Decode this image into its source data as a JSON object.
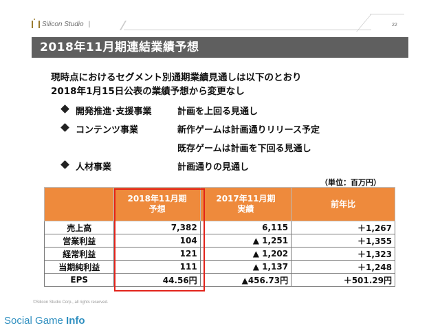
{
  "header": {
    "logo_text": "Silicon Studio",
    "separator": "|",
    "page_number": "22"
  },
  "title": "2018年11月期連結業績予想",
  "intro": {
    "line1": "現時点におけるセグメント別通期業績見通しは以下のとおり",
    "line2": "2018年1月15日公表の業績予想から変更なし"
  },
  "bullets": [
    {
      "name": "開発推進･支援事業",
      "desc": "計画を上回る見通し"
    },
    {
      "name": "コンテンツ事業",
      "desc": "新作ゲームは計画通りリリース予定"
    },
    {
      "name": "",
      "desc": "既存ゲームは計画を下回る見通し"
    },
    {
      "name": "人材事業",
      "desc": "計画通りの見通し"
    }
  ],
  "unit": "（単位：百万円）",
  "table": {
    "headers": [
      {
        "line1": "2018年11月期",
        "line2": "予想"
      },
      {
        "line1": "2017年11月期",
        "line2": "実績"
      },
      {
        "line1": "前年比",
        "line2": ""
      }
    ],
    "rows": [
      {
        "label": "売上高",
        "c1": "7,382",
        "c2": "6,115",
        "c3": "＋1,267"
      },
      {
        "label": "営業利益",
        "c1": "104",
        "c2": "▲ 1,251",
        "c3": "＋1,355"
      },
      {
        "label": "経常利益",
        "c1": "121",
        "c2": "▲ 1,202",
        "c3": "＋1,323"
      },
      {
        "label": "当期純利益",
        "c1": "111",
        "c2": "▲ 1,137",
        "c3": "＋1,248"
      },
      {
        "label": "EPS",
        "c1": "44.56円",
        "c2": "▲456.73円",
        "c3": "＋501.29円"
      }
    ]
  },
  "footer": {
    "copyright": "©Silicon Studio Corp., all rights reserved.",
    "watermark_a": "Social Game ",
    "watermark_b": "Info"
  },
  "colors": {
    "title_bar": "#5f5f5f",
    "table_header": "#ee8a3c",
    "highlight": "#e2231a",
    "watermark": "#2f8fc0"
  }
}
